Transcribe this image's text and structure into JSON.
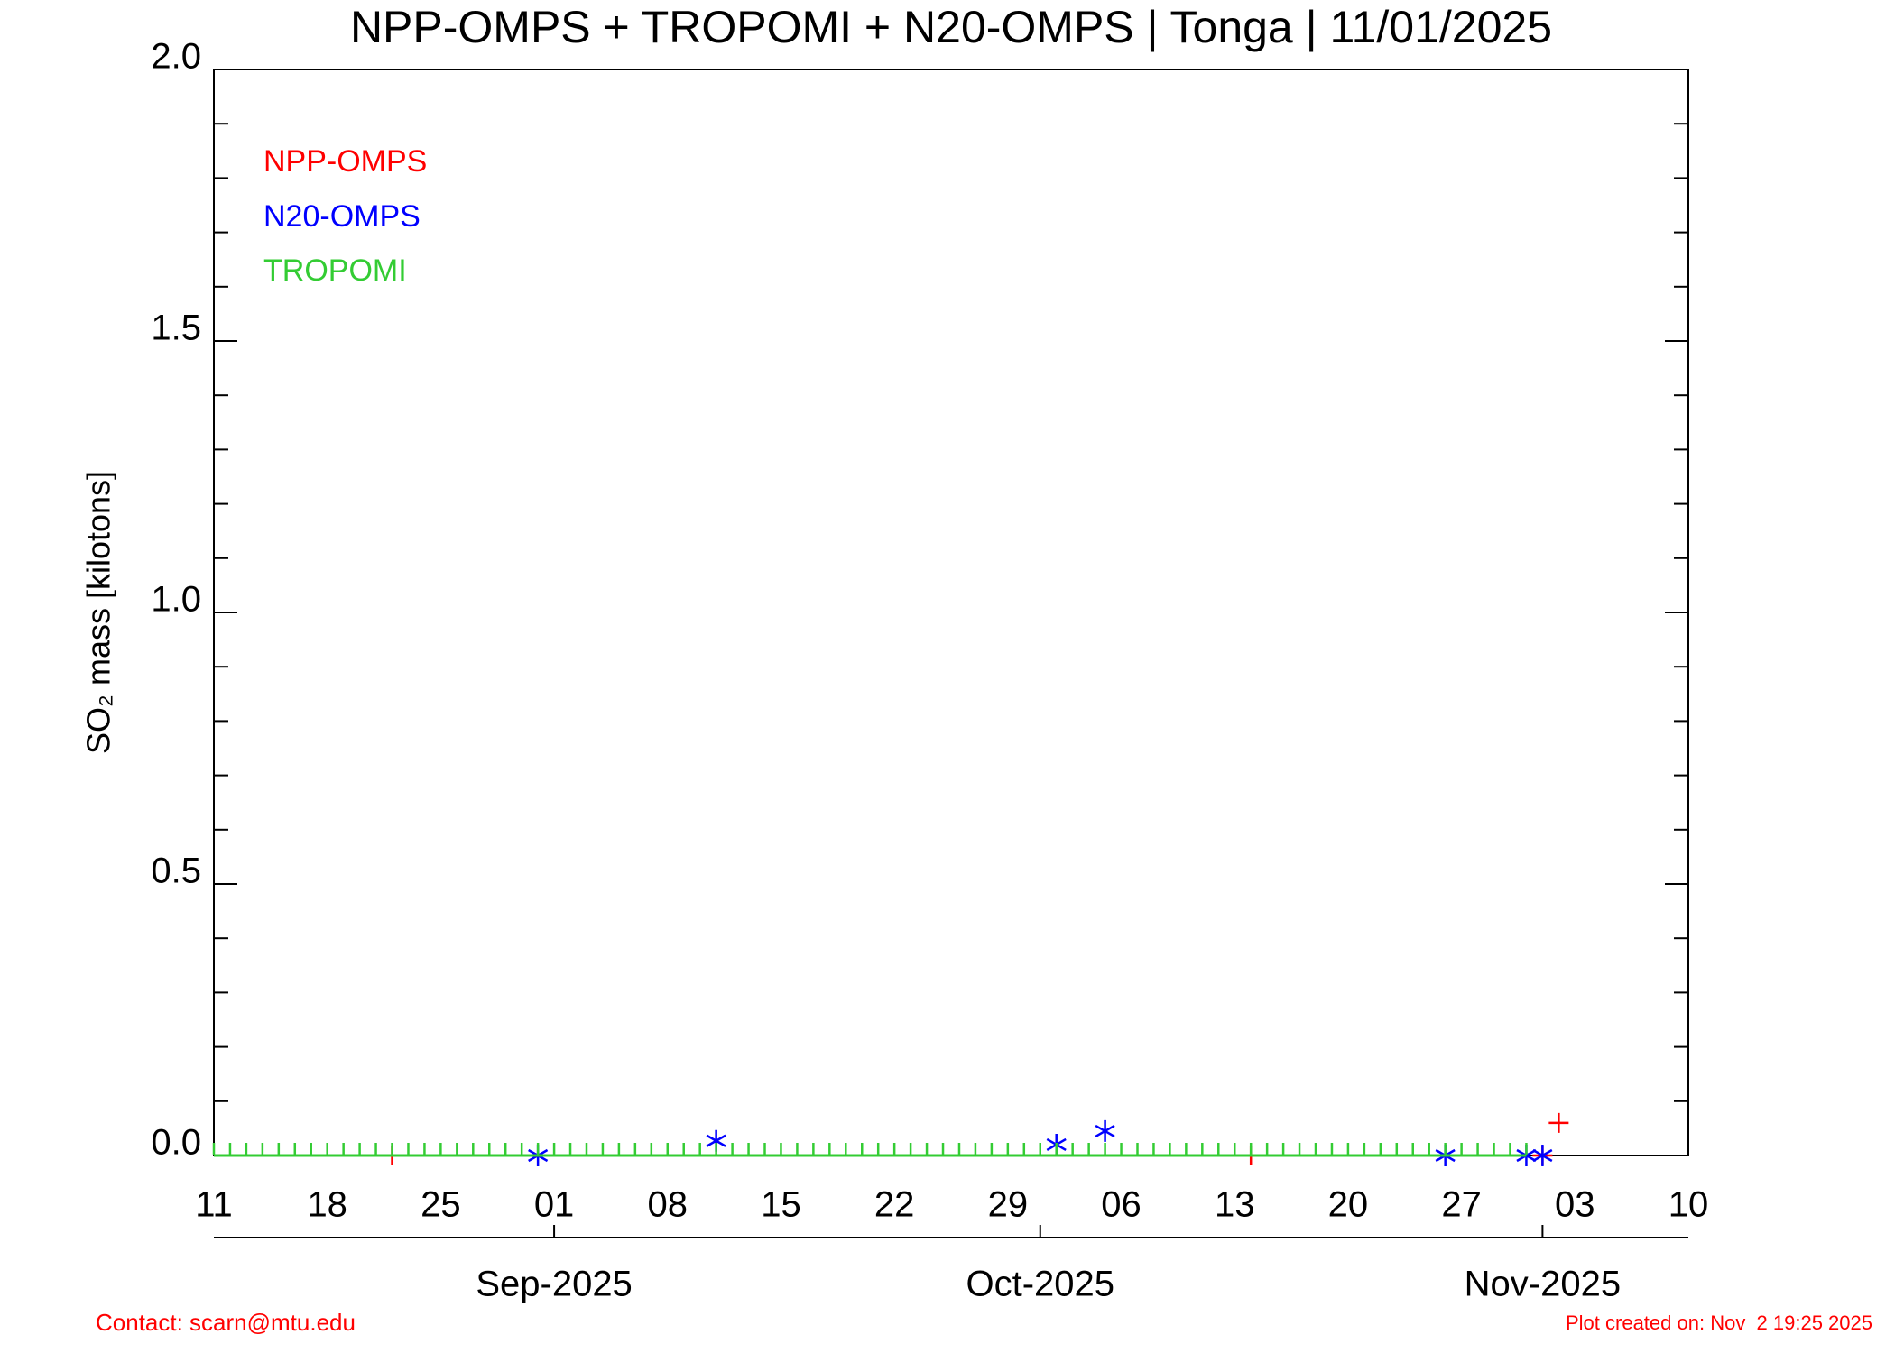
{
  "chart_data": {
    "type": "scatter",
    "title": "NPP-OMPS + TROPOMI + N20-OMPS | Tonga | 11/01/2025",
    "ylabel": "SO₂ mass [kilotons]",
    "xlim": [
      "2025-08-11",
      "2025-11-10"
    ],
    "xticks": [
      {
        "value": "2025-08-11",
        "label": "11"
      },
      {
        "value": "2025-08-18",
        "label": "18"
      },
      {
        "value": "2025-08-25",
        "label": "25"
      },
      {
        "value": "2025-09-01",
        "label": "01"
      },
      {
        "value": "2025-09-08",
        "label": "08"
      },
      {
        "value": "2025-09-15",
        "label": "15"
      },
      {
        "value": "2025-09-22",
        "label": "22"
      },
      {
        "value": "2025-09-29",
        "label": "29"
      },
      {
        "value": "2025-10-06",
        "label": "06"
      },
      {
        "value": "2025-10-13",
        "label": "13"
      },
      {
        "value": "2025-10-20",
        "label": "20"
      },
      {
        "value": "2025-10-27",
        "label": "27"
      },
      {
        "value": "2025-11-03",
        "label": "03"
      },
      {
        "value": "2025-11-10",
        "label": "10"
      }
    ],
    "x2ticks": [
      {
        "value": "2025-09-01",
        "label": "Sep-2025"
      },
      {
        "value": "2025-10-01",
        "label": "Oct-2025"
      },
      {
        "value": "2025-11-01",
        "label": "Nov-2025"
      }
    ],
    "ylim": [
      0,
      2.0
    ],
    "yticks": [
      {
        "value": 0,
        "label": "0.0"
      },
      {
        "value": 0.5,
        "label": "0.5"
      },
      {
        "value": 1.0,
        "label": "1.0"
      },
      {
        "value": 1.5,
        "label": "1.5"
      },
      {
        "value": 2.0,
        "label": "2.0"
      }
    ],
    "yminorticks": [
      0.1,
      0.2,
      0.3,
      0.4,
      0.6,
      0.7,
      0.8,
      0.9,
      1.1,
      1.2,
      1.3,
      1.4,
      1.6,
      1.7,
      1.8,
      1.9
    ],
    "series": [
      {
        "name": "NPP-OMPS",
        "color": "#ff0000",
        "marker": "plus",
        "x": [
          "2025-08-22",
          "2025-10-14",
          "2025-11-01",
          "2025-11-02"
        ],
        "values": [
          0,
          0,
          0,
          0.06
        ]
      },
      {
        "name": "N20-OMPS",
        "color": "#0000ff",
        "marker": "asterisk",
        "x": [
          "2025-08-31",
          "2025-09-11",
          "2025-10-02",
          "2025-10-05",
          "2025-10-26",
          "2025-10-31",
          "2025-11-01"
        ],
        "values": [
          0,
          0.027,
          0.02,
          0.045,
          0,
          0,
          0
        ]
      },
      {
        "name": "TROPOMI",
        "color": "#33cc33",
        "marker": "tick",
        "x": [
          "2025-08-11",
          "2025-08-12",
          "2025-08-13",
          "2025-08-14",
          "2025-08-15",
          "2025-08-16",
          "2025-08-17",
          "2025-08-18",
          "2025-08-19",
          "2025-08-20",
          "2025-08-21",
          "2025-08-22",
          "2025-08-23",
          "2025-08-24",
          "2025-08-25",
          "2025-08-26",
          "2025-08-27",
          "2025-08-28",
          "2025-08-29",
          "2025-08-30",
          "2025-08-31",
          "2025-09-01",
          "2025-09-02",
          "2025-09-03",
          "2025-09-04",
          "2025-09-05",
          "2025-09-06",
          "2025-09-07",
          "2025-09-08",
          "2025-09-09",
          "2025-09-10",
          "2025-09-11",
          "2025-09-12",
          "2025-09-13",
          "2025-09-14",
          "2025-09-15",
          "2025-09-16",
          "2025-09-17",
          "2025-09-18",
          "2025-09-19",
          "2025-09-20",
          "2025-09-21",
          "2025-09-22",
          "2025-09-23",
          "2025-09-24",
          "2025-09-25",
          "2025-09-26",
          "2025-09-27",
          "2025-09-28",
          "2025-09-29",
          "2025-09-30",
          "2025-10-01",
          "2025-10-02",
          "2025-10-03",
          "2025-10-04",
          "2025-10-05",
          "2025-10-06",
          "2025-10-07",
          "2025-10-08",
          "2025-10-09",
          "2025-10-10",
          "2025-10-11",
          "2025-10-12",
          "2025-10-13",
          "2025-10-14",
          "2025-10-15",
          "2025-10-16",
          "2025-10-17",
          "2025-10-18",
          "2025-10-19",
          "2025-10-20",
          "2025-10-21",
          "2025-10-22",
          "2025-10-23",
          "2025-10-24",
          "2025-10-25",
          "2025-10-26",
          "2025-10-27",
          "2025-10-28",
          "2025-10-29",
          "2025-10-30",
          "2025-10-31"
        ],
        "values": [
          0,
          0,
          0,
          0,
          0,
          0,
          0,
          0,
          0,
          0,
          0,
          0,
          0,
          0,
          0,
          0,
          0,
          0,
          0,
          0,
          0,
          0,
          0,
          0,
          0,
          0,
          0,
          0,
          0,
          0,
          0,
          0,
          0,
          0,
          0,
          0,
          0,
          0,
          0,
          0,
          0,
          0,
          0,
          0,
          0,
          0,
          0,
          0,
          0,
          0,
          0,
          0,
          0,
          0,
          0,
          0,
          0,
          0,
          0,
          0,
          0,
          0,
          0,
          0,
          0,
          0,
          0,
          0,
          0,
          0,
          0,
          0,
          0,
          0,
          0,
          0,
          0,
          0,
          0,
          0,
          0,
          0
        ]
      }
    ]
  },
  "footer": {
    "contact": "Contact: scarn@mtu.edu",
    "created": "Plot created on: Nov  2 19:25 2025"
  }
}
